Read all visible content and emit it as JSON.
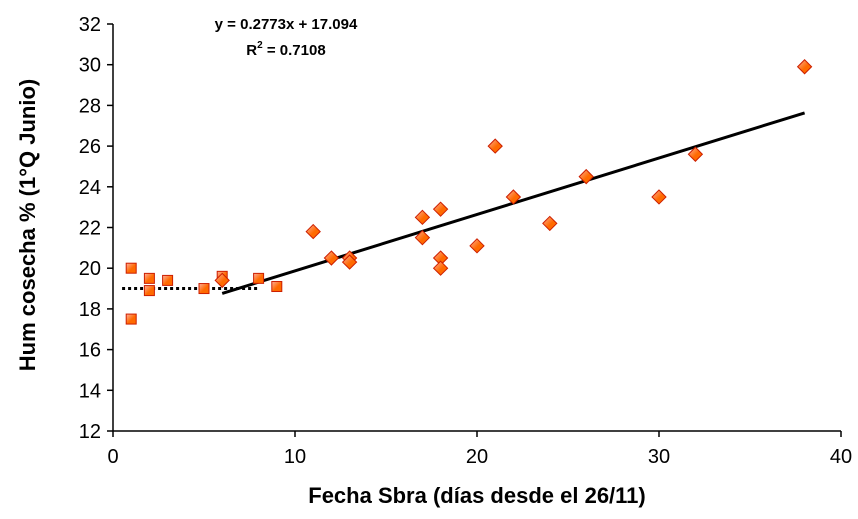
{
  "chart_data": {
    "type": "scatter",
    "title": "",
    "xlabel": "Fecha Sbra (días desde el 26/11)",
    "ylabel": "Hum cosecha % (1°Q Junio)",
    "xlim": [
      0,
      40
    ],
    "ylim": [
      12,
      32
    ],
    "x_ticks": [
      0,
      10,
      20,
      30,
      40
    ],
    "y_ticks": [
      12,
      14,
      16,
      18,
      20,
      22,
      24,
      26,
      28,
      30,
      32
    ],
    "grid": false,
    "legend": "none",
    "colors": {
      "marker_fill": "#FF6A00",
      "marker_fill_light": "#FFB0A0",
      "marker_stroke": "#CC1E00",
      "trend_line": "#000000"
    },
    "series": [
      {
        "marker": "square",
        "x": [
          1,
          1,
          2,
          2,
          3,
          5,
          6,
          8,
          9
        ],
        "y": [
          20.0,
          17.5,
          19.5,
          18.9,
          19.4,
          19.0,
          19.6,
          19.5,
          19.1
        ]
      },
      {
        "marker": "diamond",
        "x": [
          6,
          11,
          12,
          13,
          13,
          17,
          17,
          18,
          18,
          18,
          20,
          21,
          22,
          24,
          26,
          30,
          32,
          38
        ],
        "y": [
          19.4,
          21.8,
          20.5,
          20.5,
          20.3,
          22.5,
          21.5,
          22.9,
          20.5,
          20.0,
          21.1,
          26.0,
          23.5,
          22.2,
          24.5,
          23.5,
          25.6,
          29.9
        ]
      }
    ],
    "trend_lines": [
      {
        "style": "solid",
        "x": [
          6,
          38
        ],
        "y": [
          18.758,
          27.631
        ]
      },
      {
        "style": "dotted",
        "x": [
          0.5,
          8
        ],
        "y": [
          19.0,
          19.0
        ]
      }
    ],
    "annotations": {
      "equation": "y = 0.2773x + 17.094",
      "r2_prefix": "R",
      "r2_sup": "2",
      "r2_value": " = 0.7108"
    }
  }
}
